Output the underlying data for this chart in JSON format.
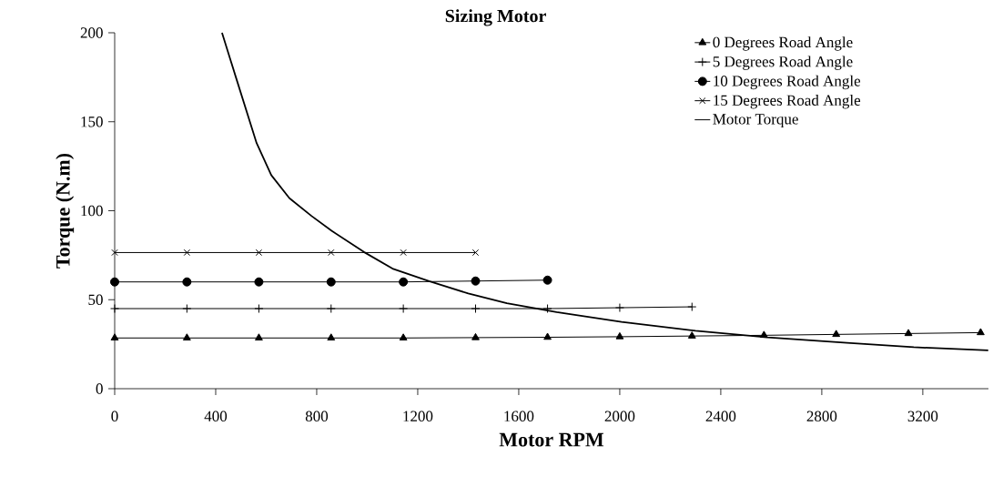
{
  "chart_data": {
    "type": "line",
    "title": "Sizing Motor",
    "xlabel": "Motor RPM",
    "ylabel": "Torque  (N.m)",
    "xlim": [
      0,
      3460
    ],
    "ylim": [
      0,
      200
    ],
    "xticks": [
      0,
      400,
      800,
      1200,
      1600,
      2000,
      2400,
      2800,
      3200
    ],
    "yticks": [
      0,
      50,
      100,
      150,
      200
    ],
    "legend": "top right",
    "line_style": "solid",
    "series": [
      {
        "name": "0 Degrees Road Angle",
        "color": "#000000",
        "marker": "triangle",
        "x": [
          0,
          286,
          571,
          857,
          1143,
          1429,
          1714,
          2000,
          2286,
          2571,
          2857,
          3143,
          3429
        ],
        "values": [
          28.5,
          28.5,
          28.5,
          28.5,
          28.5,
          28.7,
          28.9,
          29.2,
          29.6,
          30,
          30.5,
          31,
          31.5
        ]
      },
      {
        "name": "5 Degrees Road Angle",
        "color": "#000000",
        "marker": "plus",
        "x": [
          0,
          286,
          571,
          857,
          1143,
          1429,
          1714,
          2000,
          2286
        ],
        "values": [
          45,
          45,
          45,
          45,
          45,
          45,
          45,
          45.5,
          46
        ]
      },
      {
        "name": "10 Degrees Road Angle",
        "color": "#000000",
        "marker": "circle",
        "x": [
          0,
          286,
          571,
          857,
          1143,
          1429,
          1714
        ],
        "values": [
          60,
          60,
          60,
          60,
          60,
          60.5,
          61
        ]
      },
      {
        "name": "15 Degrees Road Angle",
        "color": "#000000",
        "marker": "cross",
        "x": [
          0,
          286,
          571,
          857,
          1143,
          1429
        ],
        "values": [
          76.5,
          76.5,
          76.5,
          76.5,
          76.5,
          76.5
        ]
      },
      {
        "name": "Motor Torque",
        "color": "#000000",
        "marker": "none",
        "x": [
          425,
          480,
          562,
          620,
          692,
          780,
          859,
          987,
          1100,
          1245,
          1400,
          1553,
          1750,
          2007,
          2300,
          2586,
          2900,
          3164,
          3459
        ],
        "values": [
          200,
          175,
          138,
          120,
          107,
          97,
          88.7,
          76.8,
          67.5,
          60.4,
          53.5,
          48,
          43,
          37.5,
          32.5,
          28.8,
          25.8,
          23.3,
          21.5
        ]
      }
    ]
  }
}
